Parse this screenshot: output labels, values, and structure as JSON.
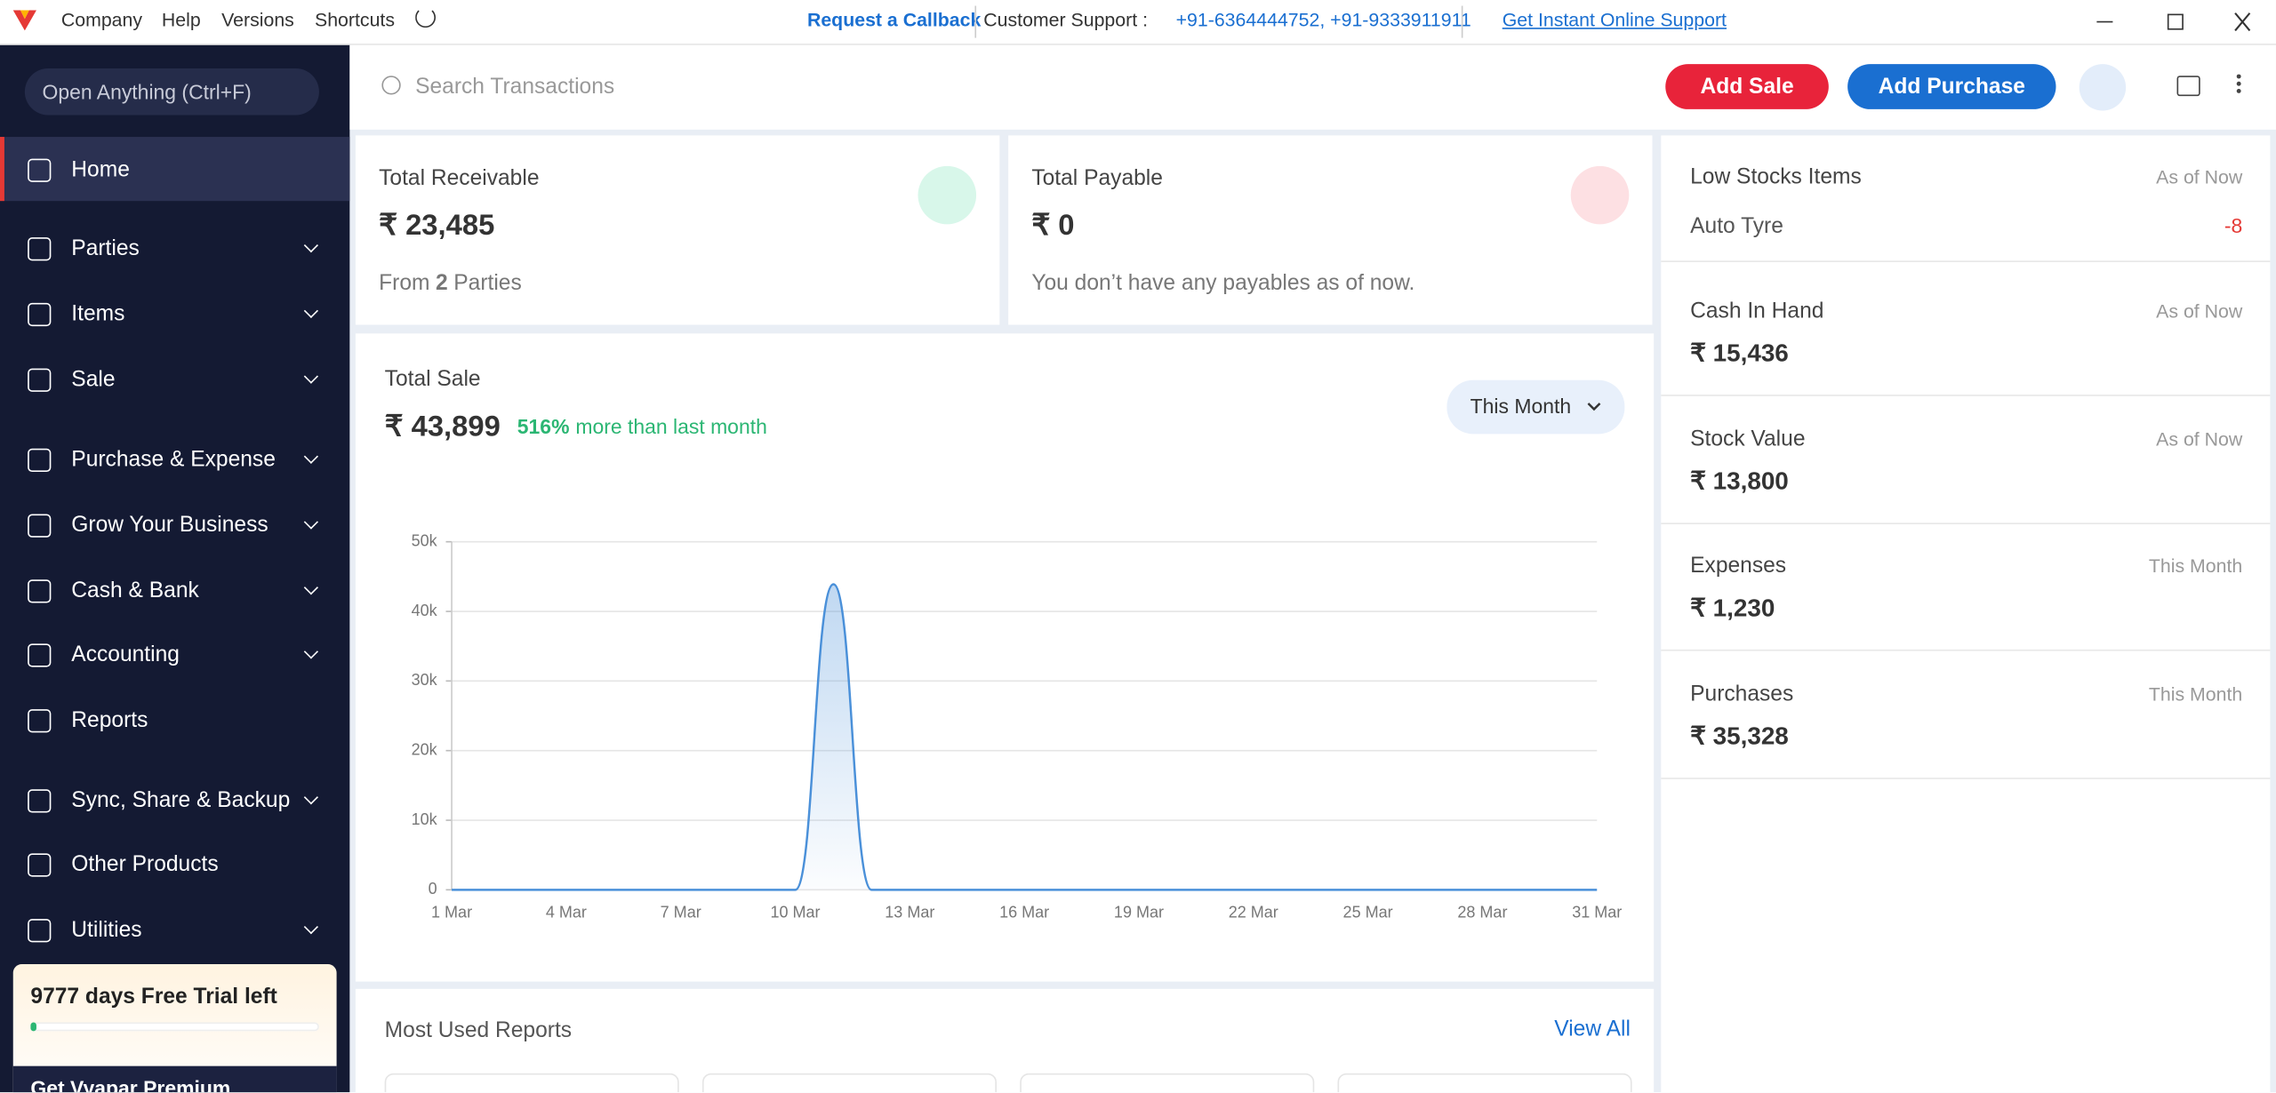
{
  "title_bar": {
    "menu": [
      "Company",
      "Help",
      "Versions",
      "Shortcuts"
    ],
    "callback": "Request a Callback",
    "support_label": "Customer Support :",
    "phones": "+91-6364444752, +91-9333911911",
    "online_support": "Get Instant Online Support"
  },
  "sidebar": {
    "search": "Open Anything (Ctrl+F)",
    "items": [
      {
        "label": "Home",
        "active": true
      },
      {
        "label": "Parties",
        "expandable": true
      },
      {
        "label": "Items",
        "expandable": true
      },
      {
        "label": "Sale",
        "expandable": true
      },
      {
        "label": "Purchase & Expense",
        "expandable": true
      },
      {
        "label": "Grow Your Business",
        "expandable": true
      },
      {
        "label": "Cash & Bank",
        "expandable": true
      },
      {
        "label": "Accounting",
        "expandable": true
      },
      {
        "label": "Reports"
      },
      {
        "label": "Sync, Share & Backup",
        "expandable": true
      },
      {
        "label": "Other Products"
      },
      {
        "label": "Utilities",
        "expandable": true
      }
    ],
    "trial": {
      "text": "9777 days Free Trial left",
      "cta": "Get Vyapar Premium"
    }
  },
  "toolbar": {
    "search_placeholder": "Search Transactions",
    "add_sale": "Add Sale",
    "add_purchase": "Add Purchase"
  },
  "cards": [
    {
      "title": "Total Receivable",
      "amount": "₹ 23,485",
      "note_prefix": "From",
      "note_count": "2",
      "note_suffix": "Parties"
    },
    {
      "title": "Total Payable",
      "amount": "₹ 0",
      "note": "You don’t have any payables as of now."
    }
  ],
  "chart_data": {
    "type": "line",
    "title": "Total Sale",
    "total": "₹ 43,899",
    "change": "516%",
    "change_text": "more than last month",
    "period": "This Month",
    "categories": [
      "1 Mar",
      null,
      null,
      "4 Mar",
      null,
      null,
      "7 Mar",
      null,
      null,
      "10 Mar",
      null,
      null,
      "13 Mar",
      null,
      null,
      "16 Mar",
      null,
      null,
      "19 Mar",
      null,
      null,
      "22 Mar",
      null,
      null,
      "25 Mar",
      null,
      null,
      "28 Mar",
      null,
      null,
      "31 Mar"
    ],
    "values": [
      0,
      0,
      0,
      0,
      0,
      0,
      0,
      0,
      0,
      0,
      43899,
      0,
      0,
      0,
      0,
      0,
      0,
      0,
      0,
      0,
      0,
      0,
      0,
      0,
      0,
      0,
      0,
      0,
      0,
      0,
      0
    ],
    "color": "#4a90d9",
    "ylim": [
      0,
      50000
    ],
    "yticks": [
      0,
      {
        "value": 10000,
        "label": "10k"
      },
      {
        "value": 20000,
        "label": "20k"
      },
      {
        "value": 30000,
        "label": "30k"
      },
      {
        "value": 40000,
        "label": "40k"
      },
      {
        "value": 50000,
        "label": "50k"
      }
    ],
    "grid": true
  },
  "right_panel": [
    {
      "title": "Low Stocks Items",
      "tag": "As of Now",
      "item": "Auto Tyre",
      "value": "-8"
    },
    {
      "title": "Cash In Hand",
      "tag": "As of Now",
      "value": "₹ 15,436"
    },
    {
      "title": "Stock Value",
      "tag": "As of Now",
      "value": "₹ 13,800"
    },
    {
      "title": "Expenses",
      "tag": "This Month",
      "value": "₹ 1,230"
    },
    {
      "title": "Purchases",
      "tag": "This Month",
      "value": "₹ 35,328"
    }
  ],
  "reports": {
    "title": "Most Used Reports",
    "link": "View All"
  }
}
